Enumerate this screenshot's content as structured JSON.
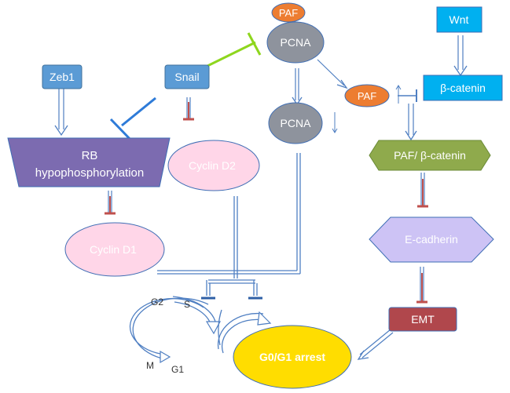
{
  "nodes": {
    "paf_top": "PAF",
    "pcna_top": "PCNA",
    "wnt": "Wnt",
    "zeb1": "Zeb1",
    "snail": "Snail",
    "paf_mid": "PAF",
    "beta_catenin": "β-catenin",
    "pcna_low": "PCNA",
    "rb_line1": "RB",
    "rb_line2": "hypophosphorylation",
    "cyclin_d2": "Cyclin D2",
    "paf_beta_catenin": "PAF/ β-catenin",
    "e_cadherin": "E-cadherin",
    "cyclin_d1": "Cyclin D1",
    "emt": "EMT",
    "g0g1_arrest": "G0/G1 arrest"
  },
  "cell_cycle": {
    "g2": "G2",
    "s": "S",
    "m": "M",
    "g1": "G1"
  },
  "colors": {
    "blue_box": "#5b9bd5",
    "blue_box_stroke": "#41719c",
    "cyan_box": "#00b0f0",
    "gray_ellipse": "#8e939d",
    "orange_ellipse": "#ed7d31",
    "purple_trapezoid": "#7c6bb0",
    "pink_ellipse": "#ffd6e8",
    "green_hexagon": "#8faa4c",
    "lavender_hexagon": "#cdc3f5",
    "emt_box": "#b0474c",
    "yellow_ellipse": "#ffdd00",
    "inhibit_green": "#8ed61e",
    "inhibit_blue": "#2e7bd8",
    "inhibit_red": "#c0504d",
    "connector": "#4f7fc2"
  }
}
